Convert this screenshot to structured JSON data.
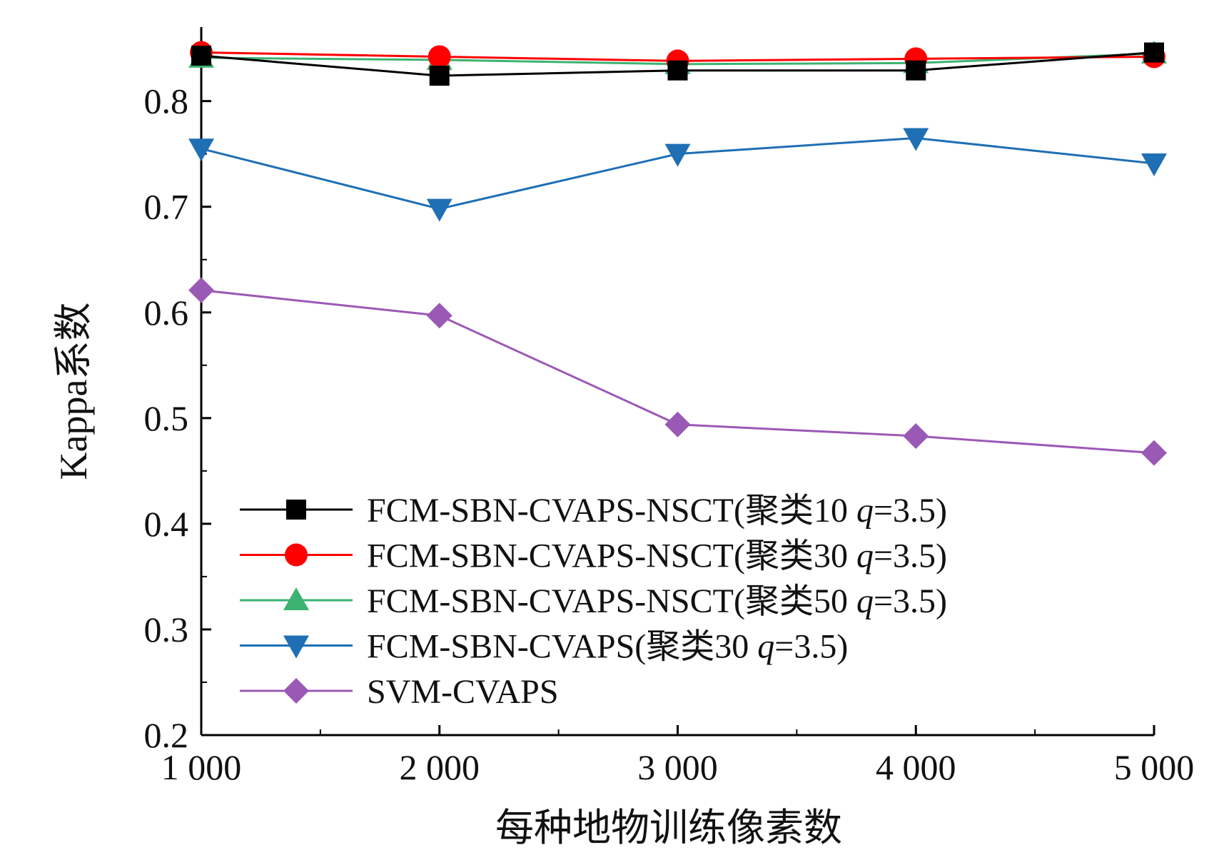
{
  "chart_data": {
    "type": "line",
    "xlabel": "每种地物训练像素数",
    "ylabel": "Kappa系数",
    "x": [
      1000,
      2000,
      3000,
      4000,
      5000
    ],
    "x_tick_labels": [
      "1 000",
      "2 000",
      "3 000",
      "4 000",
      "5 000"
    ],
    "ylim": [
      0.2,
      0.87
    ],
    "y_ticks": [
      0.2,
      0.3,
      0.4,
      0.5,
      0.6,
      0.7,
      0.8
    ],
    "y_tick_labels": [
      "0.2",
      "0.3",
      "0.4",
      "0.5",
      "0.6",
      "0.7",
      "0.8"
    ],
    "grid": false,
    "legend_position": "bottom-left",
    "series": [
      {
        "name": "FCM-SBN-CVAPS-NSCT(聚类10 q=3.5)",
        "legend_parts": [
          "FCM-SBN-CVAPS-NSCT(聚类10 ",
          "q",
          "=3.5)"
        ],
        "color": "#000000",
        "marker": "square",
        "values": [
          0.843,
          0.824,
          0.829,
          0.829,
          0.846
        ]
      },
      {
        "name": "FCM-SBN-CVAPS-NSCT(聚类30 q=3.5)",
        "legend_parts": [
          "FCM-SBN-CVAPS-NSCT(聚类30 ",
          "q",
          "=3.5)"
        ],
        "color": "#ff0000",
        "marker": "circle",
        "values": [
          0.846,
          0.842,
          0.838,
          0.84,
          0.842
        ]
      },
      {
        "name": "FCM-SBN-CVAPS-NSCT(聚类50 q=3.5)",
        "legend_parts": [
          "FCM-SBN-CVAPS-NSCT(聚类50 ",
          "q",
          "=3.5)"
        ],
        "color": "#3cb371",
        "marker": "triangle-up",
        "values": [
          0.841,
          0.839,
          0.835,
          0.836,
          0.845
        ]
      },
      {
        "name": "FCM-SBN-CVAPS(聚类30 q=3.5)",
        "legend_parts": [
          "FCM-SBN-CVAPS(聚类30 ",
          "q",
          "=3.5)"
        ],
        "color": "#1f6fb4",
        "marker": "triangle-down",
        "values": [
          0.755,
          0.698,
          0.75,
          0.765,
          0.741
        ]
      },
      {
        "name": "SVM-CVAPS",
        "legend_parts": [
          "SVM-CVAPS",
          "",
          ""
        ],
        "color": "#9b59b6",
        "marker": "diamond",
        "values": [
          0.621,
          0.597,
          0.494,
          0.483,
          0.467
        ]
      }
    ]
  }
}
